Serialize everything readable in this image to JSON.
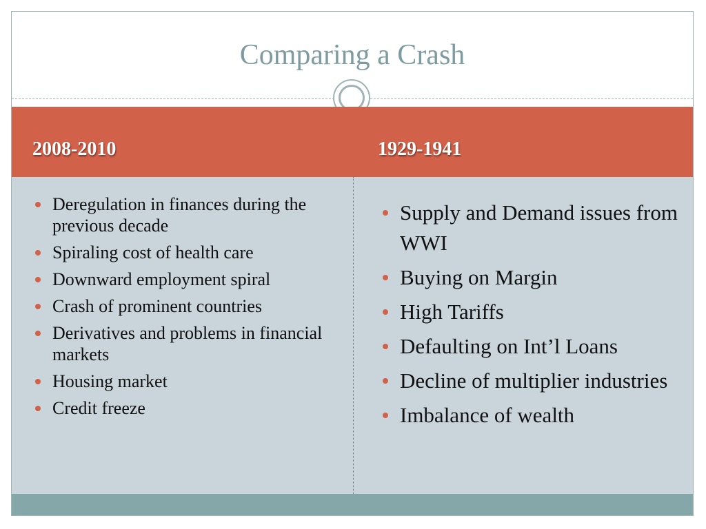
{
  "slide": {
    "title": "Comparing a Crash",
    "columns": [
      {
        "heading": "2008-2010",
        "items": [
          "Deregulation in finances during the previous decade",
          "Spiraling cost of health care",
          "Downward employment spiral",
          "Crash of prominent countries",
          "Derivatives and problems in financial markets",
          "Housing market",
          "Credit freeze"
        ]
      },
      {
        "heading": "1929-1941",
        "items": [
          "Supply and Demand issues from WWI",
          "Buying on Margin",
          "High Tariffs",
          "Defaulting on Int’l Loans",
          "Decline of multiplier industries",
          "Imbalance of wealth"
        ]
      }
    ]
  },
  "colors": {
    "title": "#7e9c9f",
    "header_band": "#d2614a",
    "body_band": "#c9d5da",
    "footer_band": "#86a7a9",
    "bullet": "#d2614a"
  }
}
